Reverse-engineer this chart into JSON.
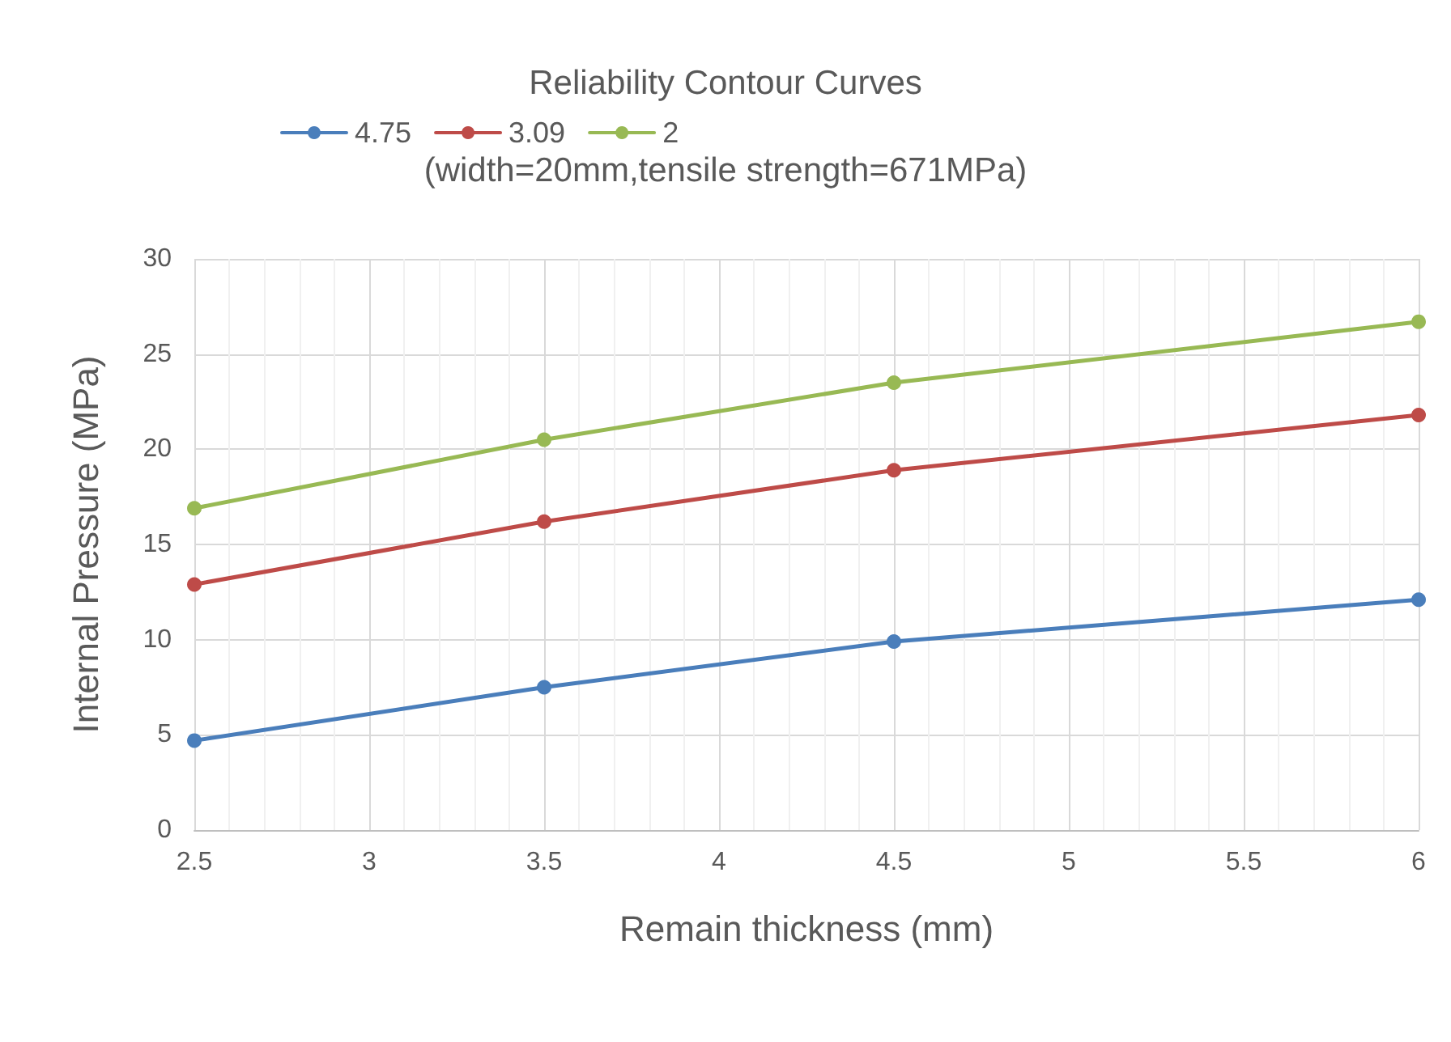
{
  "chart_data": {
    "type": "line",
    "title": "Reliability Contour Curves",
    "subtitle": "(width=20mm,tensile strength=671MPa)",
    "xlabel": "Remain thickness (mm)",
    "ylabel": "Internal Pressure (MPa)",
    "x": [
      2.5,
      3.5,
      4.5,
      6
    ],
    "series": [
      {
        "name": "4.75",
        "color": "#4a7ebb",
        "values": [
          4.7,
          7.5,
          9.9,
          12.1
        ]
      },
      {
        "name": "3.09",
        "color": "#be4b48",
        "values": [
          12.9,
          16.2,
          18.9,
          21.8
        ]
      },
      {
        "name": "2",
        "color": "#98b954",
        "values": [
          16.9,
          20.5,
          23.5,
          26.7
        ]
      }
    ],
    "xlim": [
      2.5,
      6
    ],
    "xticks": [
      2.5,
      3,
      3.5,
      4,
      4.5,
      5,
      5.5,
      6
    ],
    "ylim": [
      0,
      30
    ],
    "yticks": [
      0,
      5,
      10,
      15,
      20,
      25,
      30
    ],
    "grid": true,
    "legend": "top left",
    "marker": "circle",
    "line_style": "solid"
  }
}
